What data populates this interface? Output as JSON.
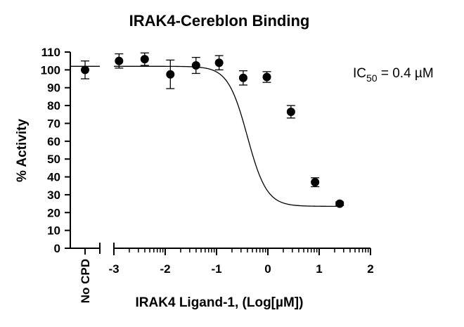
{
  "chart_data": {
    "type": "scatter",
    "title": "IRAK4-Cereblon Binding",
    "xlabel": "IRAK4 Ligand-1, (Log[µM])",
    "ylabel": "% Activity",
    "ylim": [
      0,
      110
    ],
    "y_ticks": [
      "0",
      "10",
      "20",
      "30",
      "40",
      "50",
      "60",
      "70",
      "80",
      "90",
      "100",
      "110"
    ],
    "xlim": [
      -3,
      2
    ],
    "x_ticks": [
      "-3",
      "-2",
      "-1",
      "0",
      "1",
      "2"
    ],
    "control": {
      "label": "No CPD",
      "y": 100,
      "err": 5
    },
    "series": [
      {
        "x": [
          -2.9,
          -2.4,
          -1.9,
          -1.4,
          -0.95,
          -0.48,
          -0.02,
          0.45,
          0.92,
          1.4
        ],
        "y": [
          105,
          106,
          97.5,
          102.5,
          104,
          95.5,
          96,
          76.5,
          37,
          25
        ],
        "err": [
          4,
          3.5,
          8,
          4.5,
          4,
          4,
          3,
          3.5,
          2.5,
          1
        ]
      }
    ],
    "fit": {
      "type": "4PL",
      "top": 102,
      "bottom": 23.5,
      "log_ic50": -0.4,
      "hill": 2.3,
      "x_start_offset": 0
    },
    "annotation": {
      "prefix": "IC",
      "subscript": "50",
      "suffix": " = 0.4 µM"
    },
    "grid": false,
    "legend": "none"
  }
}
